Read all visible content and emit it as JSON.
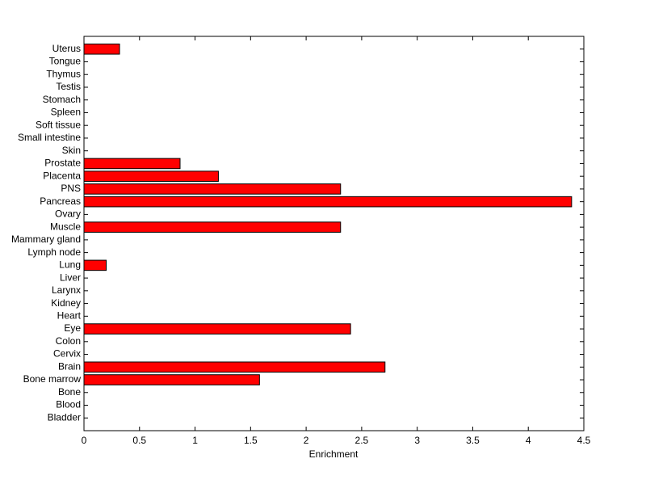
{
  "chart_data": {
    "type": "barh",
    "xlabel": "Enrichment",
    "categories": [
      "Bladder",
      "Blood",
      "Bone",
      "Bone marrow",
      "Brain",
      "Cervix",
      "Colon",
      "Eye",
      "Heart",
      "Kidney",
      "Larynx",
      "Liver",
      "Lung",
      "Lymph node",
      "Mammary gland",
      "Muscle",
      "Ovary",
      "Pancreas",
      "PNS",
      "Placenta",
      "Prostate",
      "Skin",
      "Small intestine",
      "Soft tissue",
      "Spleen",
      "Stomach",
      "Testis",
      "Thymus",
      "Tongue",
      "Uterus"
    ],
    "values": [
      0,
      0,
      0,
      1.58,
      2.71,
      0,
      0,
      2.4,
      0,
      0,
      0,
      0,
      0.2,
      0,
      0,
      2.31,
      0,
      4.39,
      2.31,
      1.21,
      0.865,
      0,
      0,
      0,
      0,
      0,
      0,
      0,
      0,
      0.32
    ],
    "color": "#ff0000",
    "xlim": [
      0,
      4.5
    ],
    "xticks": [
      0,
      0.5,
      1,
      1.5,
      2,
      2.5,
      3,
      3.5,
      4,
      4.5
    ]
  }
}
